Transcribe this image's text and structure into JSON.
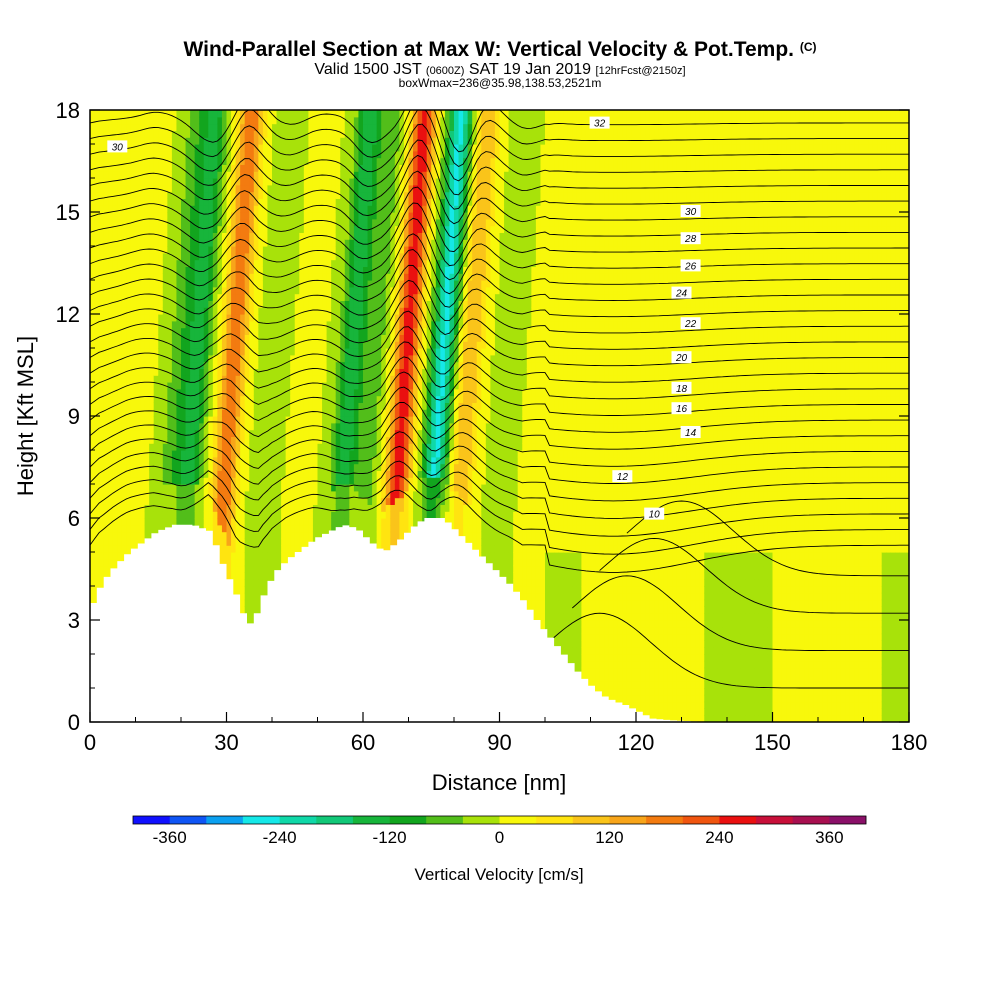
{
  "title": {
    "main": "Wind-Parallel Section at Max W: Vertical Velocity & Pot.Temp.",
    "copyright": "(C)",
    "valid_prefix": "Valid 1500 JST",
    "valid_utc": "(0600Z)",
    "valid_date": "SAT 19 Jan 2019",
    "forecast": "[12hrFcst@2150z]",
    "box_info": "boxWmax=236@35.98,138.53,2521m"
  },
  "chart_data": {
    "type": "heatmap",
    "xlabel": "Distance [nm]",
    "ylabel": "Height [Kft MSL]",
    "xlim": [
      0,
      180
    ],
    "ylim": [
      0,
      18
    ],
    "x_ticks": [
      0,
      30,
      60,
      90,
      120,
      150,
      180
    ],
    "y_ticks": [
      0,
      3,
      6,
      9,
      12,
      15,
      18
    ],
    "colorbar": {
      "label": "Vertical Velocity [cm/s]",
      "tick_labels": [
        "-360",
        "-240",
        "-120",
        "0",
        "120",
        "240",
        "360"
      ],
      "tick_values": [
        -360,
        -240,
        -120,
        0,
        120,
        240,
        360
      ],
      "levels": [
        -400,
        -360,
        -320,
        -280,
        -240,
        -200,
        -160,
        -120,
        -80,
        -40,
        0,
        40,
        80,
        120,
        160,
        200,
        240,
        280,
        320,
        360,
        400
      ],
      "colors": [
        "#1010ff",
        "#0f55f5",
        "#0ba0f0",
        "#15e8e8",
        "#10d8a8",
        "#12c878",
        "#17b53b",
        "#12a51e",
        "#52be1a",
        "#a8e20a",
        "#f8f80b",
        "#ffe410",
        "#fac41a",
        "#f8a51a",
        "#f37b10",
        "#f05510",
        "#ea1010",
        "#c8103a",
        "#a81050",
        "#8a1068"
      ]
    },
    "vertical_velocity_bands": [
      {
        "x_center": 8,
        "value": 30
      },
      {
        "x_center": 17,
        "value": -60
      },
      {
        "x_center": 21,
        "value": -140
      },
      {
        "x_center": 29,
        "value": 200
      },
      {
        "x_center": 38,
        "value": -40
      },
      {
        "x_center": 45,
        "value": 20
      },
      {
        "x_center": 55,
        "value": -150
      },
      {
        "x_center": 60,
        "value": -60
      },
      {
        "x_center": 67,
        "value": 270
      },
      {
        "x_center": 75,
        "value": -250
      },
      {
        "x_center": 81,
        "value": 120
      },
      {
        "x_center": 90,
        "value": -40
      },
      {
        "x_center": 95,
        "value": 10
      },
      {
        "x_center": 150,
        "value": -20
      }
    ],
    "terrain_profile_kft": [
      [
        0,
        3.5
      ],
      [
        2,
        4.1
      ],
      [
        5,
        4.6
      ],
      [
        8,
        5.0
      ],
      [
        11,
        5.3
      ],
      [
        14,
        5.6
      ],
      [
        18,
        5.8
      ],
      [
        22,
        5.8
      ],
      [
        26,
        5.6
      ],
      [
        28,
        4.8
      ],
      [
        30,
        4.2
      ],
      [
        32,
        3.6
      ],
      [
        34,
        2.8
      ],
      [
        36,
        3.2
      ],
      [
        38,
        3.9
      ],
      [
        40,
        4.4
      ],
      [
        43,
        4.8
      ],
      [
        46,
        5.1
      ],
      [
        49,
        5.4
      ],
      [
        52,
        5.6
      ],
      [
        55,
        5.8
      ],
      [
        58,
        5.7
      ],
      [
        61,
        5.3
      ],
      [
        64,
        5.0
      ],
      [
        67,
        5.3
      ],
      [
        70,
        5.7
      ],
      [
        73,
        6.0
      ],
      [
        77,
        6.0
      ],
      [
        80,
        5.6
      ],
      [
        83,
        5.2
      ],
      [
        86,
        4.8
      ],
      [
        89,
        4.4
      ],
      [
        92,
        4.0
      ],
      [
        95,
        3.5
      ],
      [
        98,
        2.9
      ],
      [
        101,
        2.4
      ],
      [
        104,
        1.9
      ],
      [
        107,
        1.4
      ],
      [
        110,
        1.0
      ],
      [
        113,
        0.7
      ],
      [
        117,
        0.5
      ],
      [
        120,
        0.3
      ],
      [
        123,
        0.1
      ],
      [
        127,
        0.05
      ],
      [
        135,
        0
      ],
      [
        180,
        0
      ]
    ],
    "isentrope_labels": [
      "30",
      "32",
      "30",
      "28",
      "26",
      "24",
      "22",
      "20",
      "18",
      "16",
      "14",
      "12",
      "10"
    ],
    "theta_levels": [
      10,
      12,
      14,
      16,
      18,
      20,
      22,
      24,
      26,
      28,
      30,
      32
    ]
  }
}
